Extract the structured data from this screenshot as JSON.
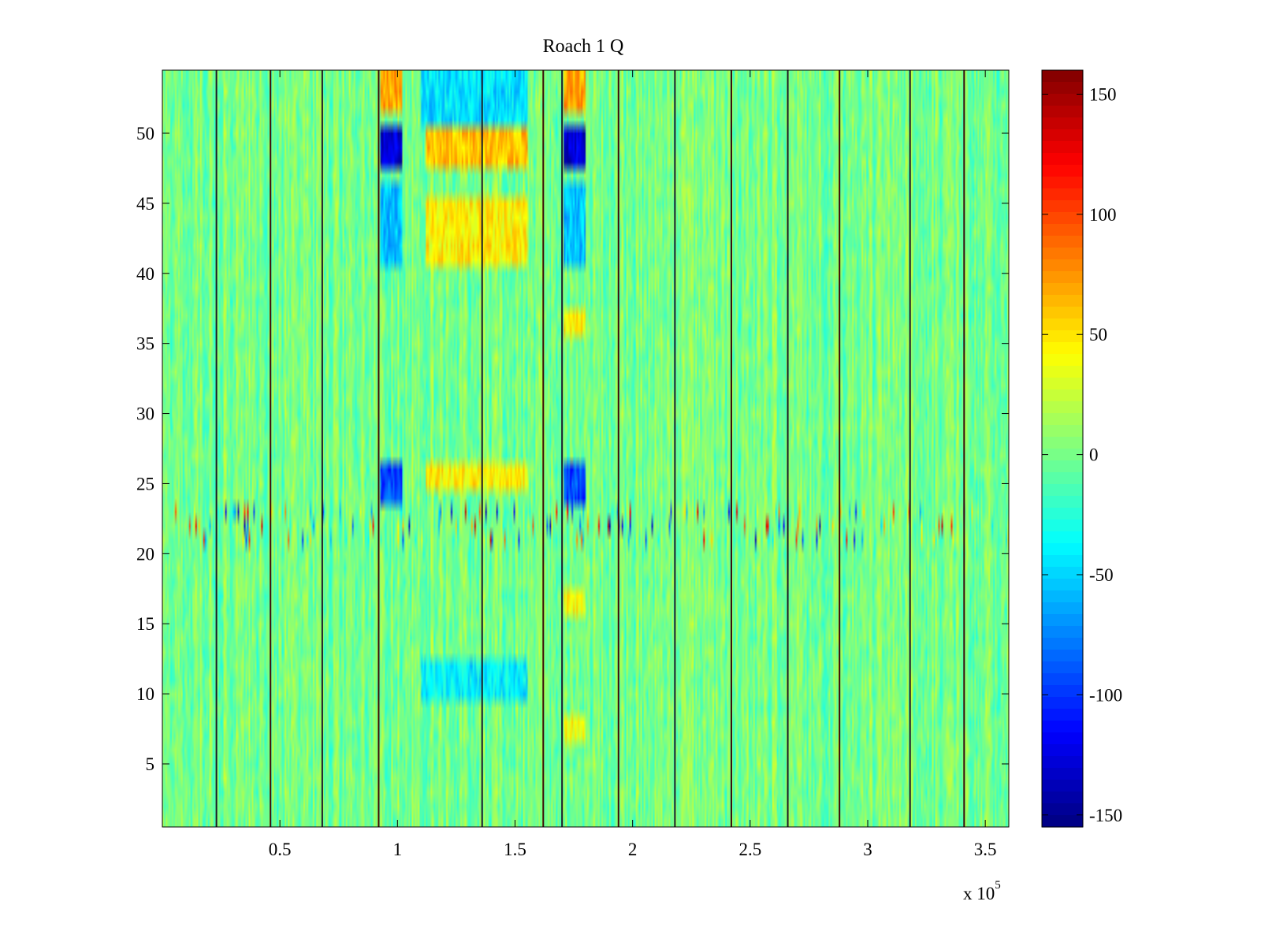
{
  "chart_data": {
    "type": "heatmap",
    "title": "Roach 1 Q",
    "xlabel": "",
    "ylabel": "",
    "x_exponent_label": "x 10",
    "x_exponent_power": "5",
    "xlim": [
      0,
      3.6
    ],
    "ylim": [
      0.5,
      54.5
    ],
    "x_ticks": [
      0.5,
      1,
      1.5,
      2,
      2.5,
      3,
      3.5
    ],
    "x_tick_labels": [
      "0.5",
      "1",
      "1.5",
      "2",
      "2.5",
      "3",
      "3.5"
    ],
    "y_ticks": [
      5,
      10,
      15,
      20,
      25,
      30,
      35,
      40,
      45,
      50
    ],
    "y_tick_labels": [
      "5",
      "10",
      "15",
      "20",
      "25",
      "30",
      "35",
      "40",
      "45",
      "50"
    ],
    "colorbar": {
      "colormap": "jet",
      "clim": [
        -155,
        160
      ],
      "ticks": [
        150,
        100,
        50,
        0,
        -50,
        -100,
        -150
      ],
      "tick_labels": [
        "150",
        "100",
        "50",
        "0",
        "-50",
        "-100",
        "-150"
      ]
    },
    "rows": 54,
    "background_value": 0,
    "noise_amplitude": 30,
    "column_separators_x": [
      0.23,
      0.46,
      0.68,
      0.92,
      1.36,
      1.62,
      1.7,
      1.94,
      2.18,
      2.42,
      2.66,
      2.88,
      3.18,
      3.41
    ],
    "regions": [
      {
        "x": [
          0.93,
          1.02
        ],
        "y": [
          48,
          50
        ],
        "value": -130
      },
      {
        "x": [
          1.71,
          1.8
        ],
        "y": [
          48,
          50
        ],
        "value": -130
      },
      {
        "x": [
          0.93,
          1.02
        ],
        "y": [
          41,
          46
        ],
        "value": -55
      },
      {
        "x": [
          1.71,
          1.8
        ],
        "y": [
          41,
          46
        ],
        "value": -55
      },
      {
        "x": [
          0.93,
          1.02
        ],
        "y": [
          24,
          26
        ],
        "value": -95
      },
      {
        "x": [
          1.71,
          1.8
        ],
        "y": [
          24,
          26
        ],
        "value": -95
      },
      {
        "x": [
          1.12,
          1.55
        ],
        "y": [
          48,
          50
        ],
        "value": 60
      },
      {
        "x": [
          1.12,
          1.55
        ],
        "y": [
          41,
          45
        ],
        "value": 45
      },
      {
        "x": [
          1.12,
          1.55
        ],
        "y": [
          25,
          26
        ],
        "value": 45
      },
      {
        "x": [
          0.93,
          1.02
        ],
        "y": [
          52,
          54
        ],
        "value": 70
      },
      {
        "x": [
          1.71,
          1.8
        ],
        "y": [
          52,
          54
        ],
        "value": 70
      },
      {
        "x": [
          1.71,
          1.8
        ],
        "y": [
          36,
          37
        ],
        "value": 45
      },
      {
        "x": [
          1.71,
          1.8
        ],
        "y": [
          16,
          17
        ],
        "value": 40
      },
      {
        "x": [
          1.71,
          1.8
        ],
        "y": [
          7,
          8
        ],
        "value": 40
      },
      {
        "x": [
          1.1,
          1.55
        ],
        "y": [
          51,
          54
        ],
        "value": -45
      },
      {
        "x": [
          1.1,
          1.55
        ],
        "y": [
          10,
          12
        ],
        "value": -40
      }
    ],
    "noisy_band_rows": [
      21,
      23
    ],
    "noisy_band_amplitude": 140
  }
}
